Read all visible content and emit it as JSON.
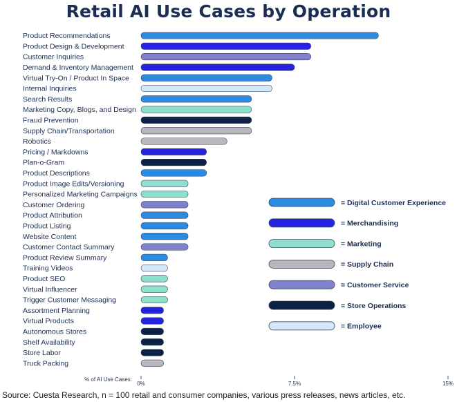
{
  "title": "Retail AI Use Cases by Operation",
  "source": "Source: Cuesta Research, n = 100 retail and consumer companies, various press releases, news articles, etc.",
  "colors": {
    "Digital Customer Experience": "#2b8be0",
    "Merchandising": "#2424e0",
    "Marketing": "#8ee0cc",
    "Supply Chain": "#b8b8bc",
    "Customer Service": "#8080cc",
    "Store Operations": "#0c2244",
    "Employee": "#d4e8fa"
  },
  "chart_data": {
    "type": "bar",
    "orientation": "horizontal",
    "title": "Retail AI Use Cases by Operation",
    "xlabel": "% of AI Use Cases:",
    "xlim": [
      0,
      15
    ],
    "x_ticks": [
      "0%",
      "7.5%",
      "15%"
    ],
    "x_tick_values": [
      0,
      7.5,
      15
    ],
    "grid": false,
    "legend_position": "right",
    "legend": [
      "= Digital Customer Experience",
      "= Merchandising",
      "= Marketing",
      "= Supply Chain",
      "= Customer Service",
      "= Store Operations",
      "= Employee"
    ],
    "legend_groups": [
      "Digital Customer Experience",
      "Merchandising",
      "Marketing",
      "Supply Chain",
      "Customer Service",
      "Store Operations",
      "Employee"
    ],
    "bars": [
      {
        "label": "Product Recommendations",
        "value": 11.6,
        "group": "Digital Customer Experience"
      },
      {
        "label": "Product Design & Development",
        "value": 8.3,
        "group": "Merchandising"
      },
      {
        "label": "Customer Inquiries",
        "value": 8.3,
        "group": "Customer Service"
      },
      {
        "label": "Demand & Inventory Management",
        "value": 7.5,
        "group": "Merchandising"
      },
      {
        "label": "Virtual Try-On / Product In Space",
        "value": 6.4,
        "group": "Digital Customer Experience"
      },
      {
        "label": "Internal Inquiries",
        "value": 6.4,
        "group": "Employee"
      },
      {
        "label": "Search Results",
        "value": 5.4,
        "group": "Digital Customer Experience"
      },
      {
        "label": "Marketing Copy, Blogs, and Design",
        "value": 5.4,
        "group": "Marketing"
      },
      {
        "label": "Fraud Prevention",
        "value": 5.4,
        "group": "Store Operations"
      },
      {
        "label": "Supply Chain/Transportation",
        "value": 5.4,
        "group": "Supply Chain"
      },
      {
        "label": "Robotics",
        "value": 4.2,
        "group": "Supply Chain"
      },
      {
        "label": "Pricing / Markdowns",
        "value": 3.2,
        "group": "Merchandising"
      },
      {
        "label": "Plan-o-Gram",
        "value": 3.2,
        "group": "Store Operations"
      },
      {
        "label": "Product Descriptions",
        "value": 3.2,
        "group": "Digital Customer Experience"
      },
      {
        "label": "Product Image Edits/Versioning",
        "value": 2.3,
        "group": "Marketing"
      },
      {
        "label": "Personalized Marketing Campaigns",
        "value": 2.3,
        "group": "Marketing"
      },
      {
        "label": "Customer Ordering",
        "value": 2.3,
        "group": "Customer Service"
      },
      {
        "label": "Product Attribution",
        "value": 2.3,
        "group": "Digital Customer Experience"
      },
      {
        "label": "Product Listing",
        "value": 2.3,
        "group": "Digital Customer Experience"
      },
      {
        "label": "Website Content",
        "value": 2.3,
        "group": "Digital Customer Experience"
      },
      {
        "label": "Customer Contact Summary",
        "value": 2.3,
        "group": "Customer Service"
      },
      {
        "label": "Product Review Summary",
        "value": 1.3,
        "group": "Digital Customer Experience"
      },
      {
        "label": "Training Videos",
        "value": 1.3,
        "group": "Employee"
      },
      {
        "label": "Product SEO",
        "value": 1.3,
        "group": "Marketing"
      },
      {
        "label": "Virtual Influencer",
        "value": 1.3,
        "group": "Marketing"
      },
      {
        "label": "Trigger Customer Messaging",
        "value": 1.3,
        "group": "Marketing"
      },
      {
        "label": "Assortment Planning",
        "value": 1.1,
        "group": "Merchandising"
      },
      {
        "label": "Virtual Products",
        "value": 1.1,
        "group": "Merchandising"
      },
      {
        "label": "Autonomous Stores",
        "value": 1.1,
        "group": "Store Operations"
      },
      {
        "label": "Shelf Availability",
        "value": 1.1,
        "group": "Store Operations"
      },
      {
        "label": "Store Labor",
        "value": 1.1,
        "group": "Store Operations"
      },
      {
        "label": "Truck Packing",
        "value": 1.1,
        "group": "Supply Chain"
      }
    ]
  }
}
